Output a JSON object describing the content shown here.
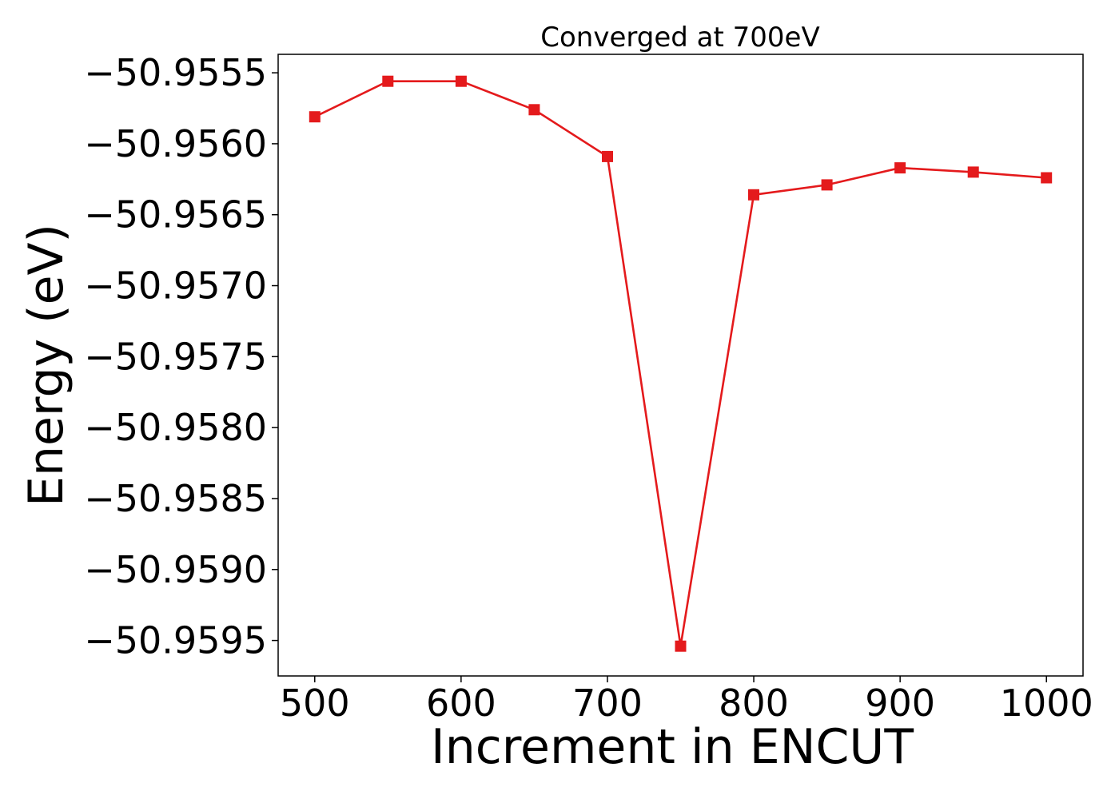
{
  "chart_data": {
    "type": "line",
    "title": "Converged at 700eV",
    "xlabel": "Increment in ENCUT",
    "ylabel": "Energy (eV)",
    "xlim": [
      475,
      1025
    ],
    "ylim": [
      -50.95975,
      -50.95537
    ],
    "x_ticks": [
      500,
      600,
      700,
      800,
      900,
      1000
    ],
    "x_tick_labels": [
      "500",
      "600",
      "700",
      "800",
      "900",
      "1000"
    ],
    "y_ticks": [
      -50.9555,
      -50.956,
      -50.9565,
      -50.957,
      -50.9575,
      -50.958,
      -50.9585,
      -50.959,
      -50.9595
    ],
    "y_tick_labels": [
      "−50.9555",
      "−50.9560",
      "−50.9565",
      "−50.9570",
      "−50.9575",
      "−50.9580",
      "−50.9585",
      "−50.9590",
      "−50.9595"
    ],
    "grid": false,
    "marker": "square",
    "color": "#e41a1c",
    "x": [
      500,
      550,
      600,
      650,
      700,
      750,
      800,
      850,
      900,
      950,
      1000
    ],
    "series": [
      {
        "values": [
          -50.95581,
          -50.95556,
          -50.95556,
          -50.95576,
          -50.95609,
          -50.95954,
          -50.95636,
          -50.95629,
          -50.95617,
          -50.9562,
          -50.95624
        ]
      }
    ]
  }
}
